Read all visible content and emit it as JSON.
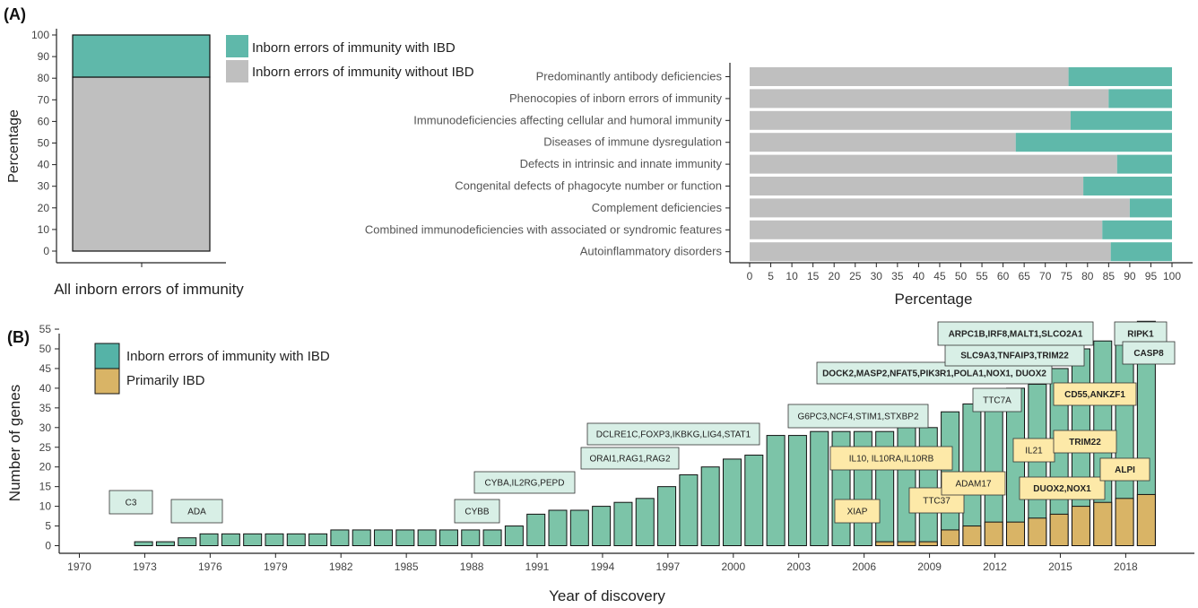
{
  "colors": {
    "ibd": "#5fb8aa",
    "no_ibd": "#bfbfbf",
    "gene_bar": "#7cc4a8",
    "primarily_ibd": "#d9b466",
    "legend_ibd": "#55b3a7",
    "ann_green": "#d8efe6",
    "ann_yellow": "#fde9a8"
  },
  "chart_data": [
    {
      "type": "bar",
      "stacked": true,
      "panel": "(A)",
      "categories": [
        "All inborn errors of immunity"
      ],
      "series": [
        {
          "name": "Inborn errors of immunity with IBD",
          "values": [
            19.5
          ]
        },
        {
          "name": "Inborn errors of immunity without IBD",
          "values": [
            80.5
          ]
        }
      ],
      "ylabel": "Percentage",
      "ylim": [
        0,
        100
      ],
      "yticks": [
        0,
        10,
        20,
        30,
        40,
        50,
        60,
        70,
        80,
        90,
        100
      ],
      "legend_position": "right"
    },
    {
      "type": "bar",
      "orientation": "horizontal",
      "stacked": true,
      "categories": [
        "Predominantly antibody deficiencies",
        "Phenocopies of inborn errors of immunity",
        "Immunodeficiencies affecting cellular and humoral immunity",
        "Diseases of immune dysregulation",
        "Defects in intrinsic and innate immunity",
        "Congenital defects of phagocyte number or function",
        "Complement deficiencies",
        "Combined immunodeficiencies with associated or syndromic features",
        "Autoinflammatory disorders"
      ],
      "series": [
        {
          "name": "Inborn errors of immunity without IBD",
          "values": [
            75.5,
            85,
            76,
            63,
            87,
            79,
            90,
            83.5,
            85.5
          ]
        },
        {
          "name": "Inborn errors of immunity with IBD",
          "values": [
            24.5,
            15,
            24,
            37,
            13,
            21,
            10,
            16.5,
            14.5
          ]
        }
      ],
      "xlabel": "Percentage",
      "xlim": [
        0,
        100
      ],
      "xticks": [
        0,
        5,
        10,
        15,
        20,
        25,
        30,
        35,
        40,
        45,
        50,
        55,
        60,
        65,
        70,
        75,
        80,
        85,
        90,
        95,
        100
      ]
    },
    {
      "type": "bar",
      "panel": "(B)",
      "x": [
        1972,
        1973,
        1974,
        1975,
        1976,
        1977,
        1978,
        1979,
        1980,
        1981,
        1982,
        1983,
        1984,
        1985,
        1986,
        1987,
        1988,
        1989,
        1990,
        1991,
        1992,
        1993,
        1994,
        1995,
        1996,
        1997,
        1998,
        1999,
        2000,
        2001,
        2002,
        2003,
        2004,
        2005,
        2006,
        2007,
        2008,
        2009,
        2010,
        2011,
        2012,
        2013,
        2014,
        2015,
        2016,
        2017,
        2018
      ],
      "series": [
        {
          "name": "Inborn errors of immunity with IBD",
          "values": [
            1,
            1,
            2,
            3,
            3,
            3,
            3,
            3,
            3,
            4,
            4,
            4,
            4,
            4,
            4,
            4,
            4,
            5,
            8,
            9,
            9,
            10,
            11,
            12,
            15,
            18,
            20,
            22,
            23,
            28,
            28,
            29,
            29,
            29,
            29,
            30,
            30,
            34,
            36,
            37,
            40,
            41,
            45,
            50,
            52,
            56,
            57
          ]
        },
        {
          "name": "Primarily IBD",
          "values": [
            0,
            0,
            0,
            0,
            0,
            0,
            0,
            0,
            0,
            0,
            0,
            0,
            0,
            0,
            0,
            0,
            0,
            0,
            0,
            0,
            0,
            0,
            0,
            0,
            0,
            0,
            0,
            0,
            0,
            0,
            0,
            0,
            0,
            0,
            1,
            1,
            1,
            4,
            5,
            6,
            6,
            7,
            8,
            10,
            11,
            12,
            13
          ]
        }
      ],
      "xlabel": "Year of discovery",
      "ylabel": "Number of genes",
      "xticks": [
        1970,
        1973,
        1976,
        1979,
        1982,
        1985,
        1988,
        1991,
        1994,
        1997,
        2000,
        2003,
        2006,
        2009,
        2012,
        2015,
        2018
      ],
      "yticks": [
        0,
        5,
        10,
        15,
        20,
        25,
        30,
        35,
        40,
        45,
        50,
        55
      ],
      "ylim": [
        0,
        57
      ],
      "legend_position": "top-left",
      "annotations": [
        {
          "text": "C3",
          "kind": "green",
          "bold": false
        },
        {
          "text": "ADA",
          "kind": "green",
          "bold": false
        },
        {
          "text": "CYBB",
          "kind": "green",
          "bold": false
        },
        {
          "text": "CYBA,IL2RG,PEPD",
          "kind": "green",
          "bold": false
        },
        {
          "text": "ORAI1,RAG1,RAG2",
          "kind": "green",
          "bold": false
        },
        {
          "text": "DCLRE1C,FOXP3,IKBKG,LIG4,STAT1",
          "kind": "green",
          "bold": false
        },
        {
          "text": "G6PC3,NCF4,STIM1,STXBP2",
          "kind": "green",
          "bold": false
        },
        {
          "text": "XIAP",
          "kind": "yellow",
          "bold": false
        },
        {
          "text": "IL10, IL10RA,IL10RB",
          "kind": "yellow",
          "bold": false
        },
        {
          "text": "TTC37",
          "kind": "yellow",
          "bold": false
        },
        {
          "text": "ADAM17",
          "kind": "yellow",
          "bold": false
        },
        {
          "text": "TTC7A",
          "kind": "green",
          "bold": false
        },
        {
          "text": "IL21",
          "kind": "yellow",
          "bold": false
        },
        {
          "text": "DOCK2,MASP2,NFAT5,PIK3R1,POLA1,NOX1, DUOX2",
          "kind": "green",
          "bold": true
        },
        {
          "text": "SLC9A3,TNFAIP3,TRIM22",
          "kind": "green",
          "bold": true
        },
        {
          "text": "ARPC1B,IRF8,MALT1,SLCO2A1",
          "kind": "green",
          "bold": true
        },
        {
          "text": "CD55,ANKZF1",
          "kind": "yellow",
          "bold": true
        },
        {
          "text": "TRIM22",
          "kind": "yellow",
          "bold": true
        },
        {
          "text": "DUOX2,NOX1",
          "kind": "yellow",
          "bold": true
        },
        {
          "text": "ALPI",
          "kind": "yellow",
          "bold": true
        },
        {
          "text": "RIPK1",
          "kind": "green",
          "bold": true
        },
        {
          "text": "CASP8",
          "kind": "green",
          "bold": true
        }
      ]
    }
  ]
}
